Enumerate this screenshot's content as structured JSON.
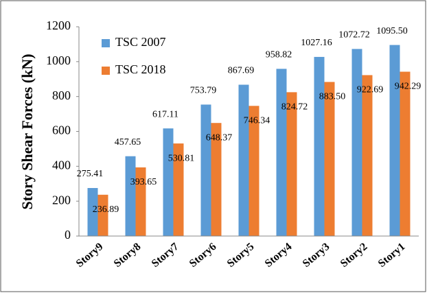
{
  "chart_data": {
    "type": "bar",
    "ylabel": "Story Shear Forces (kN)",
    "categories": [
      "Story9",
      "Story8",
      "Story7",
      "Story6",
      "Story5",
      "Story4",
      "Story3",
      "Story2",
      "Story1"
    ],
    "series": [
      {
        "name": "TSC 2007",
        "color": "#5b9bd5",
        "values": [
          275.41,
          457.65,
          617.11,
          753.79,
          867.69,
          958.82,
          1027.16,
          1072.72,
          1095.5
        ],
        "value_labels": [
          "275.41",
          "457.65",
          "617.11",
          "753.79",
          "867.69",
          "958.82",
          "1027.16",
          "1072.72",
          "1095.50"
        ]
      },
      {
        "name": "TSC 2018",
        "color": "#ed7d31",
        "values": [
          236.89,
          393.65,
          530.81,
          648.37,
          746.34,
          824.72,
          883.5,
          922.69,
          942.29
        ],
        "value_labels": [
          "236.89",
          "393.65",
          "530.81",
          "648.37",
          "746.34",
          "824.72",
          "883.50",
          "922.69",
          "942.29"
        ]
      }
    ],
    "ylim": [
      0,
      1200
    ],
    "yticks": [
      0,
      200,
      400,
      600,
      800,
      1000,
      1200
    ],
    "grid": false,
    "legend": "upper left"
  }
}
